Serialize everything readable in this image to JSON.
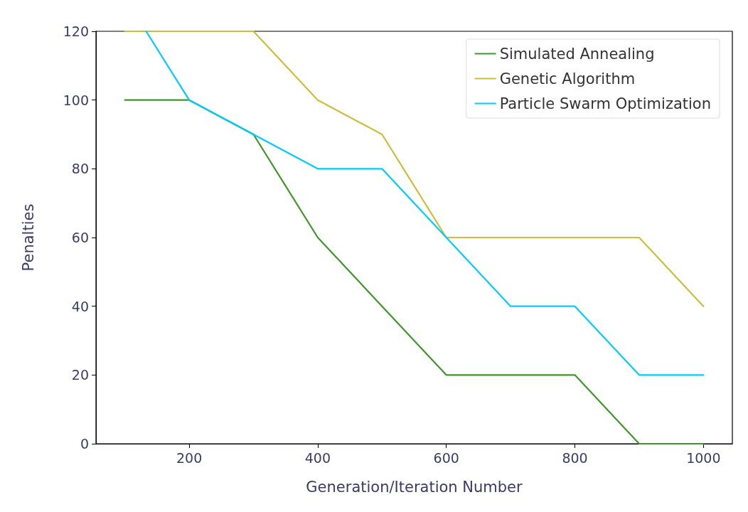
{
  "chart_data": {
    "type": "line",
    "xlabel": "Generation/Iteration Number",
    "ylabel": "Penalties",
    "x": [
      100,
      200,
      300,
      400,
      500,
      600,
      700,
      800,
      900,
      1000
    ],
    "series": [
      {
        "name": "Simulated Annealing",
        "color": "#3f962a",
        "values": [
          100,
          100,
          90,
          60,
          40,
          20,
          20,
          20,
          0,
          0
        ]
      },
      {
        "name": "Genetic Algorithm",
        "color": "#cbbf3a",
        "values": [
          120,
          120,
          120,
          100,
          90,
          60,
          60,
          60,
          60,
          40
        ]
      },
      {
        "name": "Particle Swarm Optimization",
        "color": "#00ccff",
        "x": [
          133,
          200,
          300,
          400,
          500,
          600,
          700,
          800,
          900,
          1000
        ],
        "values": [
          120,
          100,
          90,
          80,
          80,
          60,
          40,
          40,
          20,
          20
        ]
      }
    ],
    "xlim": [
      55,
      1045
    ],
    "xticks": [
      200,
      400,
      600,
      800,
      1000
    ],
    "ylim": [
      0,
      120
    ],
    "yticks": [
      0,
      20,
      40,
      60,
      80,
      100,
      120
    ],
    "grid": false,
    "legend": "top right",
    "marker": "none",
    "line_style": "solid"
  }
}
